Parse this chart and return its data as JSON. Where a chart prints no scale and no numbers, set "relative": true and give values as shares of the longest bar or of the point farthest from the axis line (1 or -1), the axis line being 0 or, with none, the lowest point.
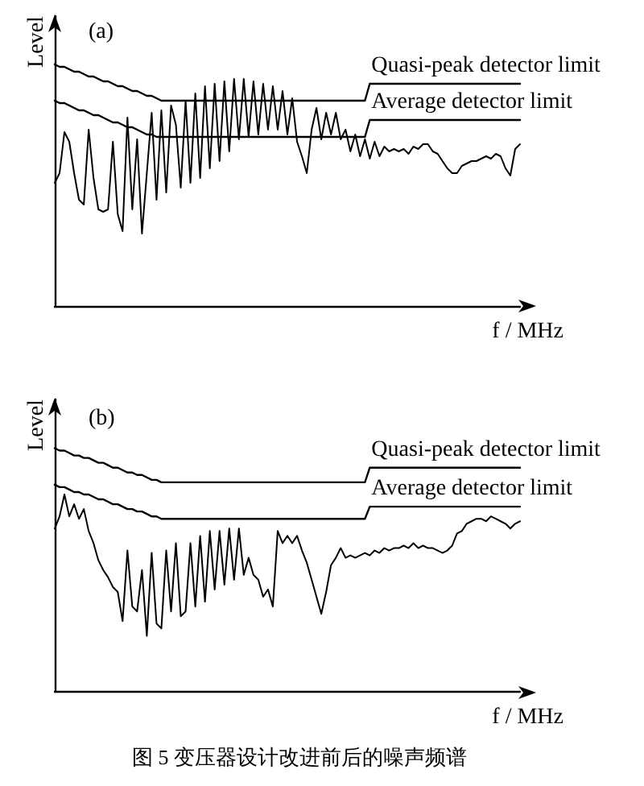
{
  "chart_data": [
    {
      "type": "line",
      "title": "(a)",
      "xlabel": "f / MHz",
      "ylabel": "Level",
      "relative": true,
      "categories": [
        null,
        null,
        null,
        null,
        null,
        null,
        null,
        null,
        null,
        null,
        null,
        null,
        null,
        null,
        null,
        null,
        null,
        null,
        null,
        null,
        null,
        null,
        null,
        null,
        null,
        null,
        null,
        null,
        null,
        null,
        null,
        null,
        null,
        null,
        null,
        null,
        null,
        null,
        null,
        null,
        null,
        null,
        null,
        null,
        null,
        null,
        null,
        null,
        null,
        null,
        null,
        null,
        null,
        null,
        null,
        null,
        null,
        null,
        null,
        null,
        null,
        null,
        null,
        null,
        null,
        null,
        null,
        null,
        null,
        null,
        null,
        null,
        null,
        null,
        null,
        null,
        null,
        null,
        null,
        null,
        null,
        null,
        null,
        null,
        null,
        null,
        null,
        null,
        null,
        null,
        null,
        null,
        null,
        null,
        null,
        null,
        null
      ],
      "series": [
        {
          "name": "Quasi-peak detector limit",
          "color": "#000000",
          "values": [
            1.0,
            0.99,
            0.99,
            0.98,
            0.97,
            0.97,
            0.96,
            0.95,
            0.95,
            0.94,
            0.93,
            0.93,
            0.92,
            0.91,
            0.91,
            0.9,
            0.89,
            0.89,
            0.88,
            0.87,
            0.87,
            0.86,
            0.85,
            0.85,
            0.85,
            0.85,
            0.85,
            0.85,
            0.85,
            0.85,
            0.85,
            0.85,
            0.85,
            0.85,
            0.85,
            0.85,
            0.85,
            0.85,
            0.85,
            0.85,
            0.85,
            0.85,
            0.85,
            0.85,
            0.85,
            0.85,
            0.85,
            0.85,
            0.85,
            0.85,
            0.85,
            0.85,
            0.85,
            0.85,
            0.85,
            0.85,
            0.85,
            0.85,
            0.85,
            0.85,
            0.85,
            0.85,
            0.85,
            0.85,
            0.85,
            0.92,
            0.92,
            0.92,
            0.92,
            0.92,
            0.92,
            0.92,
            0.92,
            0.92,
            0.92,
            0.92,
            0.92,
            0.92,
            0.92,
            0.92,
            0.92,
            0.92,
            0.92,
            0.92,
            0.92,
            0.92,
            0.92,
            0.92,
            0.92,
            0.92,
            0.92,
            0.92,
            0.92,
            0.92,
            0.92,
            0.92,
            0.92
          ]
        },
        {
          "name": "Average detector limit",
          "color": "#000000",
          "values": [
            0.85,
            0.84,
            0.84,
            0.83,
            0.82,
            0.81,
            0.81,
            0.8,
            0.79,
            0.79,
            0.78,
            0.77,
            0.76,
            0.76,
            0.75,
            0.74,
            0.74,
            0.73,
            0.72,
            0.71,
            0.71,
            0.7,
            0.7,
            0.7,
            0.7,
            0.7,
            0.7,
            0.7,
            0.7,
            0.7,
            0.7,
            0.7,
            0.7,
            0.7,
            0.7,
            0.7,
            0.7,
            0.7,
            0.7,
            0.7,
            0.7,
            0.7,
            0.7,
            0.7,
            0.7,
            0.7,
            0.7,
            0.7,
            0.7,
            0.7,
            0.7,
            0.7,
            0.7,
            0.7,
            0.7,
            0.7,
            0.7,
            0.7,
            0.7,
            0.7,
            0.7,
            0.7,
            0.7,
            0.7,
            0.7,
            0.77,
            0.77,
            0.77,
            0.77,
            0.77,
            0.77,
            0.77,
            0.77,
            0.77,
            0.77,
            0.77,
            0.77,
            0.77,
            0.77,
            0.77,
            0.77,
            0.77,
            0.77,
            0.77,
            0.77,
            0.77,
            0.77,
            0.77,
            0.77,
            0.77,
            0.77,
            0.77,
            0.77,
            0.77,
            0.77,
            0.77,
            0.77
          ]
        },
        {
          "color": "#000000",
          "values": [
            0.51,
            0.55,
            0.72,
            0.68,
            0.55,
            0.44,
            0.42,
            0.73,
            0.53,
            0.4,
            0.39,
            0.4,
            0.68,
            0.38,
            0.31,
            0.78,
            0.4,
            0.69,
            0.3,
            0.55,
            0.8,
            0.44,
            0.81,
            0.47,
            0.83,
            0.75,
            0.49,
            0.85,
            0.51,
            0.88,
            0.53,
            0.91,
            0.57,
            0.92,
            0.6,
            0.93,
            0.64,
            0.94,
            0.69,
            0.94,
            0.7,
            0.93,
            0.71,
            0.92,
            0.73,
            0.91,
            0.73,
            0.89,
            0.71,
            0.86,
            0.68,
            0.62,
            0.55,
            0.73,
            0.82,
            0.69,
            0.8,
            0.71,
            0.8,
            0.69,
            0.73,
            0.64,
            0.71,
            0.62,
            0.69,
            0.61,
            0.68,
            0.62,
            0.66,
            0.64,
            0.65,
            0.64,
            0.65,
            0.63,
            0.66,
            0.65,
            0.67,
            0.67,
            0.64,
            0.63,
            0.6,
            0.57,
            0.55,
            0.55,
            0.58,
            0.59,
            0.6,
            0.6,
            0.61,
            0.62,
            0.61,
            0.63,
            0.62,
            0.57,
            0.54,
            0.65,
            0.67
          ]
        }
      ]
    },
    {
      "type": "line",
      "title": "(b)",
      "xlabel": "f / MHz",
      "ylabel": "Level",
      "relative": true,
      "annotations": [
        "图 5 变压器设计改进前后的噪声频谱"
      ],
      "categories": [
        null,
        null,
        null,
        null,
        null,
        null,
        null,
        null,
        null,
        null,
        null,
        null,
        null,
        null,
        null,
        null,
        null,
        null,
        null,
        null,
        null,
        null,
        null,
        null,
        null,
        null,
        null,
        null,
        null,
        null,
        null,
        null,
        null,
        null,
        null,
        null,
        null,
        null,
        null,
        null,
        null,
        null,
        null,
        null,
        null,
        null,
        null,
        null,
        null,
        null,
        null,
        null,
        null,
        null,
        null,
        null,
        null,
        null,
        null,
        null,
        null,
        null,
        null,
        null,
        null,
        null,
        null,
        null,
        null,
        null,
        null,
        null,
        null,
        null,
        null,
        null,
        null,
        null,
        null,
        null,
        null,
        null,
        null,
        null,
        null,
        null,
        null,
        null,
        null,
        null,
        null,
        null,
        null,
        null,
        null,
        null,
        null
      ],
      "series": [
        {
          "name": "Quasi-peak detector limit",
          "color": "#000000",
          "values": [
            1.0,
            0.99,
            0.99,
            0.98,
            0.97,
            0.97,
            0.96,
            0.96,
            0.95,
            0.94,
            0.94,
            0.93,
            0.92,
            0.92,
            0.91,
            0.9,
            0.9,
            0.89,
            0.89,
            0.88,
            0.87,
            0.87,
            0.86,
            0.86,
            0.86,
            0.86,
            0.86,
            0.86,
            0.86,
            0.86,
            0.86,
            0.86,
            0.86,
            0.86,
            0.86,
            0.86,
            0.86,
            0.86,
            0.86,
            0.86,
            0.86,
            0.86,
            0.86,
            0.86,
            0.86,
            0.86,
            0.86,
            0.86,
            0.86,
            0.86,
            0.86,
            0.86,
            0.86,
            0.86,
            0.86,
            0.86,
            0.86,
            0.86,
            0.86,
            0.86,
            0.86,
            0.86,
            0.86,
            0.86,
            0.86,
            0.92,
            0.92,
            0.92,
            0.92,
            0.92,
            0.92,
            0.92,
            0.92,
            0.92,
            0.92,
            0.92,
            0.92,
            0.92,
            0.92,
            0.92,
            0.92,
            0.92,
            0.92,
            0.92,
            0.92,
            0.92,
            0.92,
            0.92,
            0.92,
            0.92,
            0.92,
            0.92,
            0.92,
            0.92,
            0.92,
            0.92,
            0.92
          ]
        },
        {
          "name": "Average detector limit",
          "color": "#000000",
          "values": [
            0.85,
            0.84,
            0.84,
            0.83,
            0.82,
            0.82,
            0.81,
            0.81,
            0.8,
            0.79,
            0.79,
            0.78,
            0.77,
            0.77,
            0.76,
            0.75,
            0.75,
            0.74,
            0.74,
            0.73,
            0.72,
            0.72,
            0.71,
            0.71,
            0.71,
            0.71,
            0.71,
            0.71,
            0.71,
            0.71,
            0.71,
            0.71,
            0.71,
            0.71,
            0.71,
            0.71,
            0.71,
            0.71,
            0.71,
            0.71,
            0.71,
            0.71,
            0.71,
            0.71,
            0.71,
            0.71,
            0.71,
            0.71,
            0.71,
            0.71,
            0.71,
            0.71,
            0.71,
            0.71,
            0.71,
            0.71,
            0.71,
            0.71,
            0.71,
            0.71,
            0.71,
            0.71,
            0.71,
            0.71,
            0.71,
            0.76,
            0.76,
            0.76,
            0.76,
            0.76,
            0.76,
            0.76,
            0.76,
            0.76,
            0.76,
            0.76,
            0.76,
            0.76,
            0.76,
            0.76,
            0.76,
            0.76,
            0.76,
            0.76,
            0.76,
            0.76,
            0.76,
            0.76,
            0.76,
            0.76,
            0.76,
            0.76,
            0.76,
            0.76,
            0.76,
            0.76,
            0.76
          ]
        },
        {
          "color": "#000000",
          "values": [
            0.67,
            0.72,
            0.81,
            0.72,
            0.77,
            0.71,
            0.75,
            0.66,
            0.61,
            0.54,
            0.5,
            0.47,
            0.43,
            0.41,
            0.29,
            0.58,
            0.35,
            0.33,
            0.5,
            0.23,
            0.57,
            0.28,
            0.26,
            0.58,
            0.33,
            0.61,
            0.31,
            0.33,
            0.61,
            0.35,
            0.64,
            0.37,
            0.66,
            0.42,
            0.66,
            0.44,
            0.67,
            0.46,
            0.67,
            0.48,
            0.55,
            0.48,
            0.46,
            0.39,
            0.42,
            0.35,
            0.66,
            0.61,
            0.64,
            0.61,
            0.64,
            0.58,
            0.53,
            0.46,
            0.39,
            0.32,
            0.41,
            0.52,
            0.55,
            0.59,
            0.55,
            0.56,
            0.55,
            0.56,
            0.57,
            0.56,
            0.58,
            0.57,
            0.59,
            0.58,
            0.59,
            0.59,
            0.6,
            0.59,
            0.61,
            0.59,
            0.6,
            0.59,
            0.59,
            0.58,
            0.57,
            0.58,
            0.6,
            0.65,
            0.66,
            0.69,
            0.7,
            0.71,
            0.71,
            0.7,
            0.72,
            0.71,
            0.7,
            0.69,
            0.67,
            0.69,
            0.7
          ]
        }
      ]
    }
  ]
}
